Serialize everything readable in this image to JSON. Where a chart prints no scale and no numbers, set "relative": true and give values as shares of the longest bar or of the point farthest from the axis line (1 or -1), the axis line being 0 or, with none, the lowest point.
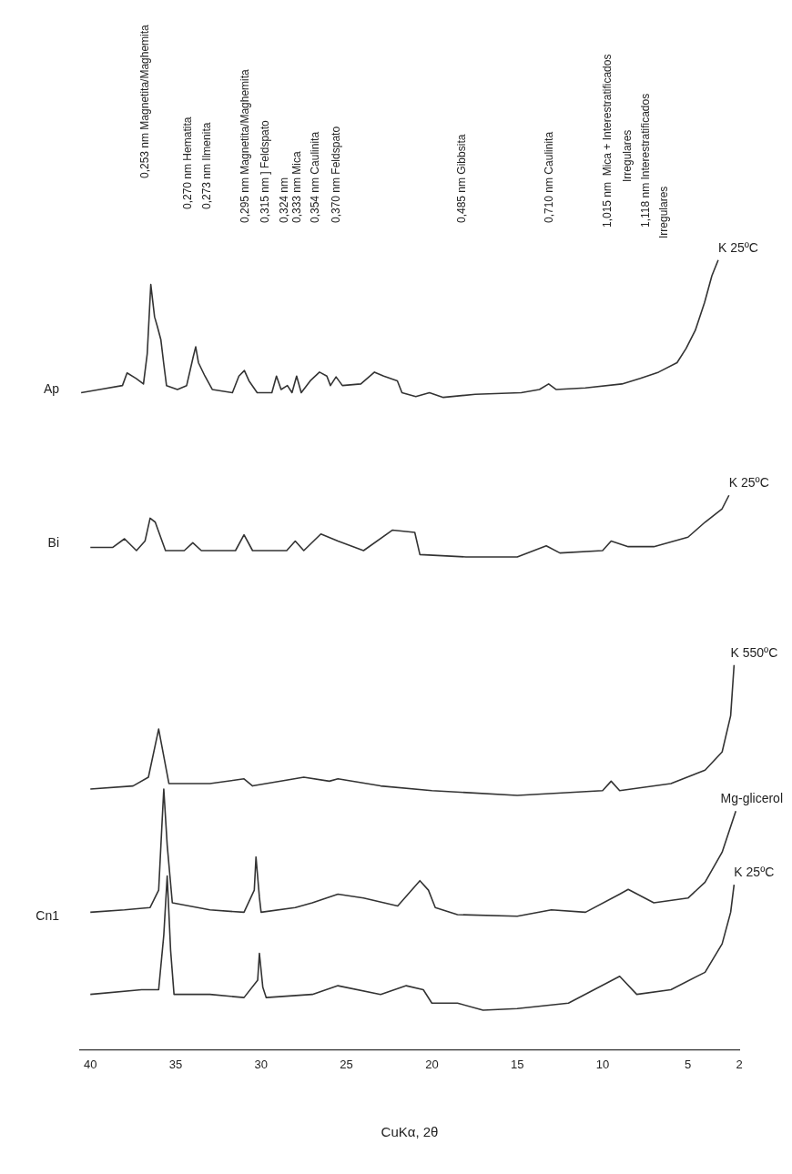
{
  "chart_data": {
    "type": "line",
    "xlabel": "CuKα, 2θ",
    "relative": true,
    "legend": false,
    "grid": false,
    "marker": "none",
    "line_style": "solid",
    "xlim": [
      40.6,
      2
    ],
    "xticks": [
      40,
      35,
      30,
      25,
      20,
      15,
      10,
      5,
      2
    ],
    "series": [
      {
        "name": "K 25ºC",
        "color": "#333333",
        "x": [
          40.54,
          39.46,
          38.12,
          37.85,
          37.32,
          36.89,
          36.67,
          36.46,
          36.24,
          36.08,
          35.87,
          35.71,
          35.54,
          34.9,
          34.36,
          33.99,
          33.83,
          33.67,
          33.29,
          32.86,
          31.68,
          31.3,
          30.98,
          30.71,
          30.23,
          29.37,
          29.1,
          28.83,
          28.46,
          28.19,
          27.92,
          27.65,
          27.12,
          26.58,
          26.15,
          25.94,
          25.61,
          25.24,
          24.16,
          23.36,
          22.82,
          22.02,
          21.75,
          20.94,
          20.14,
          19.33,
          17.45,
          14.77,
          13.7,
          13.16,
          12.73,
          11.01,
          8.87,
          7.79,
          6.72,
          5.64,
          5.11,
          4.57,
          4.03,
          3.6,
          3.23
        ],
        "values": [
          0.832,
          0.836,
          0.841,
          0.857,
          0.85,
          0.843,
          0.881,
          0.969,
          0.928,
          0.916,
          0.899,
          0.87,
          0.841,
          0.836,
          0.841,
          0.876,
          0.89,
          0.87,
          0.853,
          0.836,
          0.832,
          0.853,
          0.86,
          0.847,
          0.832,
          0.832,
          0.853,
          0.836,
          0.841,
          0.832,
          0.853,
          0.832,
          0.847,
          0.858,
          0.853,
          0.841,
          0.852,
          0.841,
          0.843,
          0.858,
          0.853,
          0.847,
          0.832,
          0.827,
          0.832,
          0.826,
          0.83,
          0.832,
          0.836,
          0.843,
          0.836,
          0.838,
          0.843,
          0.85,
          0.858,
          0.87,
          0.888,
          0.911,
          0.946,
          0.98,
          1
        ]
      },
      {
        "name": "K 25ºC",
        "color": "#333333",
        "x": [
          40,
          38.7,
          38,
          37.3,
          36.8,
          36.5,
          36.2,
          35.6,
          34.5,
          34,
          33.5,
          31.5,
          31,
          30.5,
          28.5,
          28,
          27.5,
          26.5,
          25.5,
          24,
          22.3,
          21,
          20.7,
          18,
          15,
          13.3,
          12.5,
          10,
          9.5,
          8.5,
          7,
          5,
          4,
          3,
          2.6
        ],
        "values": [
          0.636,
          0.636,
          0.647,
          0.632,
          0.644,
          0.673,
          0.668,
          0.632,
          0.632,
          0.642,
          0.632,
          0.632,
          0.652,
          0.632,
          0.632,
          0.644,
          0.632,
          0.653,
          0.644,
          0.632,
          0.658,
          0.655,
          0.627,
          0.624,
          0.624,
          0.638,
          0.629,
          0.632,
          0.644,
          0.637,
          0.637,
          0.649,
          0.668,
          0.685,
          0.702
        ]
      },
      {
        "name": "K 550ºC",
        "color": "#333333",
        "x": [
          40,
          37.5,
          36.6,
          36,
          35.4,
          33,
          31,
          30.5,
          27.5,
          26,
          25.5,
          23,
          20,
          15,
          10,
          9.5,
          9,
          6,
          4,
          3,
          2.5,
          2.3
        ],
        "values": [
          0.33,
          0.334,
          0.345,
          0.406,
          0.337,
          0.337,
          0.343,
          0.334,
          0.345,
          0.34,
          0.343,
          0.334,
          0.328,
          0.322,
          0.328,
          0.34,
          0.328,
          0.337,
          0.354,
          0.377,
          0.423,
          0.487
        ]
      },
      {
        "name": "Mg-glicerol",
        "color": "#333333",
        "x": [
          40,
          38,
          36.5,
          36,
          35.8,
          35.7,
          35.5,
          35.2,
          33,
          31,
          30.4,
          30.3,
          30.1,
          30,
          28,
          27,
          25.5,
          24,
          22,
          20.7,
          20.2,
          19.8,
          18.5,
          15,
          13,
          11,
          9,
          8.5,
          7,
          5,
          4,
          3,
          2.2
        ],
        "values": [
          0.174,
          0.177,
          0.18,
          0.202,
          0.288,
          0.33,
          0.259,
          0.186,
          0.177,
          0.174,
          0.202,
          0.244,
          0.193,
          0.174,
          0.18,
          0.186,
          0.197,
          0.192,
          0.182,
          0.214,
          0.202,
          0.18,
          0.171,
          0.169,
          0.177,
          0.174,
          0.197,
          0.203,
          0.186,
          0.192,
          0.212,
          0.25,
          0.302
        ]
      },
      {
        "name": "K 25ºC",
        "color": "#333333",
        "x": [
          40,
          37,
          36,
          35.7,
          35.5,
          35.3,
          35.1,
          33,
          31,
          30.2,
          30.1,
          29.9,
          29.7,
          27,
          25.5,
          23,
          21.5,
          20.5,
          20,
          18.5,
          17,
          15,
          12,
          9,
          8,
          6,
          4,
          3,
          2.5,
          2.3
        ],
        "values": [
          0.07,
          0.076,
          0.076,
          0.145,
          0.22,
          0.126,
          0.07,
          0.07,
          0.066,
          0.088,
          0.122,
          0.079,
          0.066,
          0.07,
          0.081,
          0.07,
          0.081,
          0.076,
          0.059,
          0.059,
          0.05,
          0.052,
          0.059,
          0.093,
          0.07,
          0.076,
          0.098,
          0.134,
          0.174,
          0.209
        ]
      }
    ],
    "annotations": [
      "Ap",
      "Bi",
      "Cn1",
      "0,253 nm Magnetita/Maghemita",
      "0,270 nm Hematita",
      "0,273 nm Ilmenita",
      "0,295 nm Magnetita/Maghemita",
      "0,315 nm ] Feldspato",
      "0,324 nm",
      "0,333 nm Mica",
      "0,354 nm Caulinita",
      "0,370 nm Feldspato",
      "0,485 nm Gibbsita",
      "0,710 nm Caulinita",
      "1,015 nm  Mica + Interestratificados",
      "Irregulares",
      "1,118 nm Interestratificados",
      "Irregulares"
    ]
  }
}
